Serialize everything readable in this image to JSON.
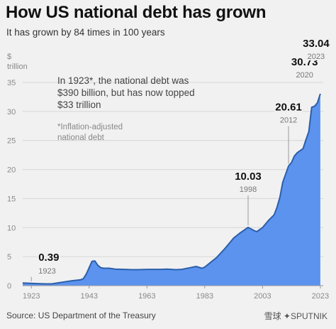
{
  "header": {
    "title": "How US national debt has grown",
    "subtitle": "It has grown by 84 times in 100 years"
  },
  "note": "In 1923*, the national debt was\n$390 billion, but has now topped\n$33 trillion",
  "footnote": "*Inflation-adjusted\nnational debt",
  "source": "Source: US Department of the Treasury",
  "watermark": "雪球 ✦SPUTNIK",
  "colors": {
    "area_fill": "#5b93ef",
    "line": "#2c5faa",
    "background": "#f1f1f1",
    "grid": "#d6d6d6"
  },
  "chart_data": {
    "type": "area",
    "ylabel": "$\ntrillion",
    "ylim": [
      0,
      35
    ],
    "yticks": [
      0,
      5,
      10,
      15,
      20,
      25,
      30,
      35
    ],
    "xlim": [
      1920,
      2024
    ],
    "xticks": [
      1923,
      1943,
      1963,
      1983,
      2003,
      2023
    ],
    "grid": true,
    "series": [
      {
        "x": [
          1920,
          1923,
          1925,
          1928,
          1930,
          1932,
          1935,
          1937,
          1939,
          1940,
          1941,
          1942,
          1943,
          1944,
          1945,
          1946,
          1947,
          1948,
          1950,
          1952,
          1955,
          1958,
          1960,
          1963,
          1965,
          1968,
          1970,
          1973,
          1975,
          1978,
          1980,
          1982,
          1983,
          1985,
          1987,
          1990,
          1993,
          1995,
          1998,
          2000,
          2001,
          2003,
          2005,
          2007,
          2008,
          2009,
          2010,
          2012,
          2013,
          2014,
          2015,
          2017,
          2018,
          2019,
          2020,
          2021,
          2022,
          2023
        ],
        "y": [
          0.45,
          0.39,
          0.35,
          0.3,
          0.3,
          0.45,
          0.7,
          0.85,
          0.95,
          1.0,
          1.2,
          2.0,
          3.1,
          4.2,
          4.25,
          3.5,
          3.1,
          3.0,
          3.0,
          2.85,
          2.8,
          2.75,
          2.75,
          2.8,
          2.8,
          2.8,
          2.85,
          2.75,
          2.8,
          3.1,
          3.3,
          3.0,
          3.2,
          4.0,
          4.8,
          6.4,
          8.2,
          9.0,
          10.03,
          9.5,
          9.3,
          10.0,
          11.2,
          12.2,
          13.5,
          15.2,
          17.8,
          20.61,
          21.2,
          22.3,
          22.9,
          23.6,
          25.1,
          26.5,
          30.73,
          30.9,
          31.5,
          33.04
        ]
      }
    ],
    "annotations": [
      {
        "year": "1923",
        "value": "0.39"
      },
      {
        "year": "1998",
        "value": "10.03"
      },
      {
        "year": "2012",
        "value": "20.61"
      },
      {
        "year": "2020",
        "value": "30.73"
      },
      {
        "year": "2023",
        "value": "33.04"
      }
    ]
  }
}
